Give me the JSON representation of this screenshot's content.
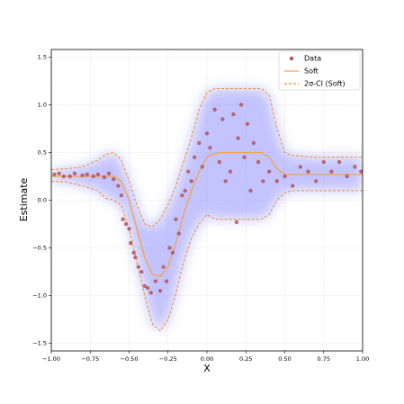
{
  "chart_data": {
    "type": "scatter",
    "xlabel": "X",
    "ylabel": "Estimate",
    "xlim": [
      -1,
      1
    ],
    "ylim": [
      -1.58,
      1.58
    ],
    "xticks": [
      {
        "value": -1,
        "label": "−1.00"
      },
      {
        "value": -0.75,
        "label": "−0.75"
      },
      {
        "value": -0.5,
        "label": "−0.50"
      },
      {
        "value": -0.25,
        "label": "−0.25"
      },
      {
        "value": 0,
        "label": "0.00"
      },
      {
        "value": 0.25,
        "label": "0.25"
      },
      {
        "value": 0.5,
        "label": "0.50"
      },
      {
        "value": 0.75,
        "label": "0.75"
      },
      {
        "value": 1,
        "label": "1.00"
      }
    ],
    "yticks": [
      {
        "value": -1.5,
        "label": "−1.5"
      },
      {
        "value": -1,
        "label": "−1.0"
      },
      {
        "value": -0.5,
        "label": "−0.5"
      },
      {
        "value": 0,
        "label": "0.0"
      },
      {
        "value": 0.5,
        "label": "0.5"
      },
      {
        "value": 1,
        "label": "1.0"
      },
      {
        "value": 1.5,
        "label": "1.5"
      }
    ],
    "grid": true,
    "legend": "upper right",
    "series": [
      {
        "name": "Data",
        "color": "#b5545c",
        "mode": "markers",
        "x": [
          -0.98,
          -0.95,
          -0.92,
          -0.88,
          -0.85,
          -0.8,
          -0.77,
          -0.73,
          -0.7,
          -0.66,
          -0.63,
          -0.6,
          -0.57,
          -0.55,
          -0.54,
          -0.52,
          -0.5,
          -0.49,
          -0.47,
          -0.46,
          -0.44,
          -0.42,
          -0.4,
          -0.38,
          -0.36,
          -0.33,
          -0.3,
          -0.28,
          -0.26,
          -0.24,
          -0.22,
          -0.2,
          -0.18,
          -0.16,
          -0.14,
          -0.12,
          -0.1,
          -0.08,
          -0.05,
          -0.03,
          0,
          0.02,
          0.05,
          0.08,
          0.1,
          0.12,
          0.15,
          0.17,
          0.19,
          0.2,
          0.22,
          0.24,
          0.26,
          0.28,
          0.3,
          0.33,
          0.36,
          0.4,
          0.45,
          0.5,
          0.55,
          0.6,
          0.65,
          0.7,
          0.75,
          0.8,
          0.85,
          0.9,
          0.95,
          0.99
        ],
        "values": [
          0.27,
          0.28,
          0.25,
          0.25,
          0.28,
          0.26,
          0.27,
          0.25,
          0.27,
          0.24,
          0.28,
          0.22,
          0.15,
          0.05,
          -0.2,
          -0.25,
          -0.3,
          -0.45,
          -0.55,
          -0.6,
          -0.7,
          -0.75,
          -0.9,
          -0.92,
          -0.97,
          -0.85,
          -0.95,
          -0.7,
          -0.85,
          -0.5,
          -0.55,
          -0.2,
          -0.35,
          0.05,
          0.1,
          0.3,
          0.2,
          0.45,
          0.6,
          0.35,
          0.7,
          0.55,
          0.95,
          0.4,
          0.85,
          0.2,
          0.3,
          0.9,
          -0.23,
          0.65,
          1.0,
          0.45,
          0.8,
          0.1,
          0.6,
          0.4,
          0.2,
          0.3,
          0.2,
          0.25,
          0.15,
          0.35,
          0.3,
          0.2,
          0.4,
          0.3,
          0.4,
          0.25,
          0.35,
          0.3
        ]
      },
      {
        "name": "Soft",
        "color": "#f5a142",
        "mode": "lines",
        "x": [
          -1,
          -0.9,
          -0.8,
          -0.7,
          -0.6,
          -0.55,
          -0.5,
          -0.45,
          -0.4,
          -0.35,
          -0.3,
          -0.25,
          -0.2,
          -0.15,
          -0.1,
          -0.05,
          0,
          0.05,
          0.1,
          0.2,
          0.3,
          0.35,
          0.4,
          0.45,
          0.5,
          0.55,
          0.7,
          0.85,
          1
        ],
        "values": [
          0.25,
          0.25,
          0.25,
          0.25,
          0.25,
          0.2,
          0,
          -0.3,
          -0.6,
          -0.78,
          -0.8,
          -0.7,
          -0.45,
          -0.15,
          0.1,
          0.3,
          0.45,
          0.49,
          0.5,
          0.5,
          0.5,
          0.5,
          0.45,
          0.33,
          0.27,
          0.27,
          0.27,
          0.27,
          0.27
        ]
      },
      {
        "name": "2σ-CI (Soft)",
        "color": "#f08c1e",
        "mode": "band",
        "dash": true,
        "x": [
          -1,
          -0.9,
          -0.8,
          -0.7,
          -0.65,
          -0.6,
          -0.55,
          -0.5,
          -0.45,
          -0.4,
          -0.35,
          -0.3,
          -0.25,
          -0.2,
          -0.15,
          -0.1,
          -0.05,
          0,
          0.05,
          0.1,
          0.2,
          0.3,
          0.35,
          0.4,
          0.45,
          0.5,
          0.55,
          0.7,
          0.85,
          1
        ],
        "upper": [
          0.32,
          0.33,
          0.35,
          0.42,
          0.48,
          0.5,
          0.42,
          0.2,
          -0.05,
          -0.25,
          -0.28,
          -0.2,
          -0.05,
          0.15,
          0.4,
          0.65,
          0.95,
          1.13,
          1.17,
          1.17,
          1.17,
          1.17,
          1.17,
          1.1,
          0.75,
          0.5,
          0.47,
          0.45,
          0.45,
          0.45
        ],
        "lower": [
          0.2,
          0.19,
          0.15,
          0.1,
          0.02,
          0,
          -0.05,
          -0.3,
          -0.65,
          -1,
          -1.3,
          -1.37,
          -1.25,
          -0.98,
          -0.65,
          -0.4,
          -0.25,
          -0.15,
          -0.2,
          -0.2,
          -0.2,
          -0.2,
          -0.2,
          -0.15,
          0,
          0.08,
          0.1,
          0.1,
          0.1,
          0.1
        ]
      }
    ]
  }
}
